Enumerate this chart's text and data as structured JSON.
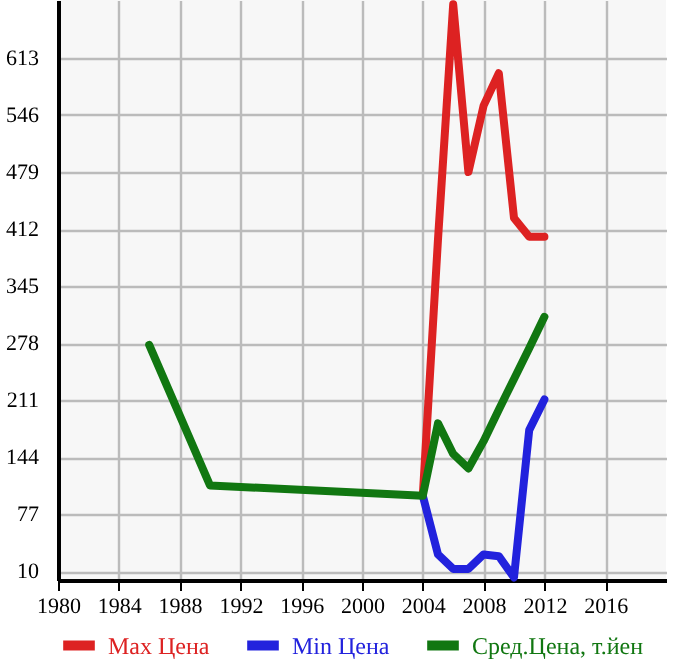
{
  "chart_data": {
    "type": "line",
    "x": [
      1986,
      1990,
      2004,
      2005,
      2006,
      2007,
      2008,
      2009,
      2010,
      2011,
      2012
    ],
    "series": [
      {
        "name": "Max Цена",
        "color": "#dd2222",
        "x": [
          2004,
          2005,
          2006,
          2007,
          2008,
          2009,
          2010,
          2011,
          2012
        ],
        "values": [
          99,
          400,
          676,
          479,
          557,
          595,
          425,
          403,
          403
        ]
      },
      {
        "name": "Min Цена",
        "color": "#2222dd",
        "x": [
          2004,
          2005,
          2006,
          2007,
          2008,
          2009,
          2010,
          2011,
          2012
        ],
        "values": [
          99,
          30,
          13,
          13,
          30,
          28,
          3,
          176,
          212
        ]
      },
      {
        "name": "Сред.Цена, т.йен",
        "color": "#117711",
        "values": [
          276,
          111,
          99,
          184,
          148,
          131,
          163,
          200,
          236,
          272,
          309
        ]
      }
    ],
    "xlim": [
      1980,
      2020
    ],
    "xticks": [
      1980,
      1984,
      1988,
      1992,
      1996,
      2000,
      2004,
      2008,
      2012,
      2016
    ],
    "ylim": [
      0,
      681
    ],
    "yticks": [
      10,
      77,
      144,
      211,
      278,
      345,
      412,
      479,
      546,
      613
    ],
    "grid": true,
    "legend": "bottom",
    "line_style": "solid",
    "marker": "none"
  }
}
